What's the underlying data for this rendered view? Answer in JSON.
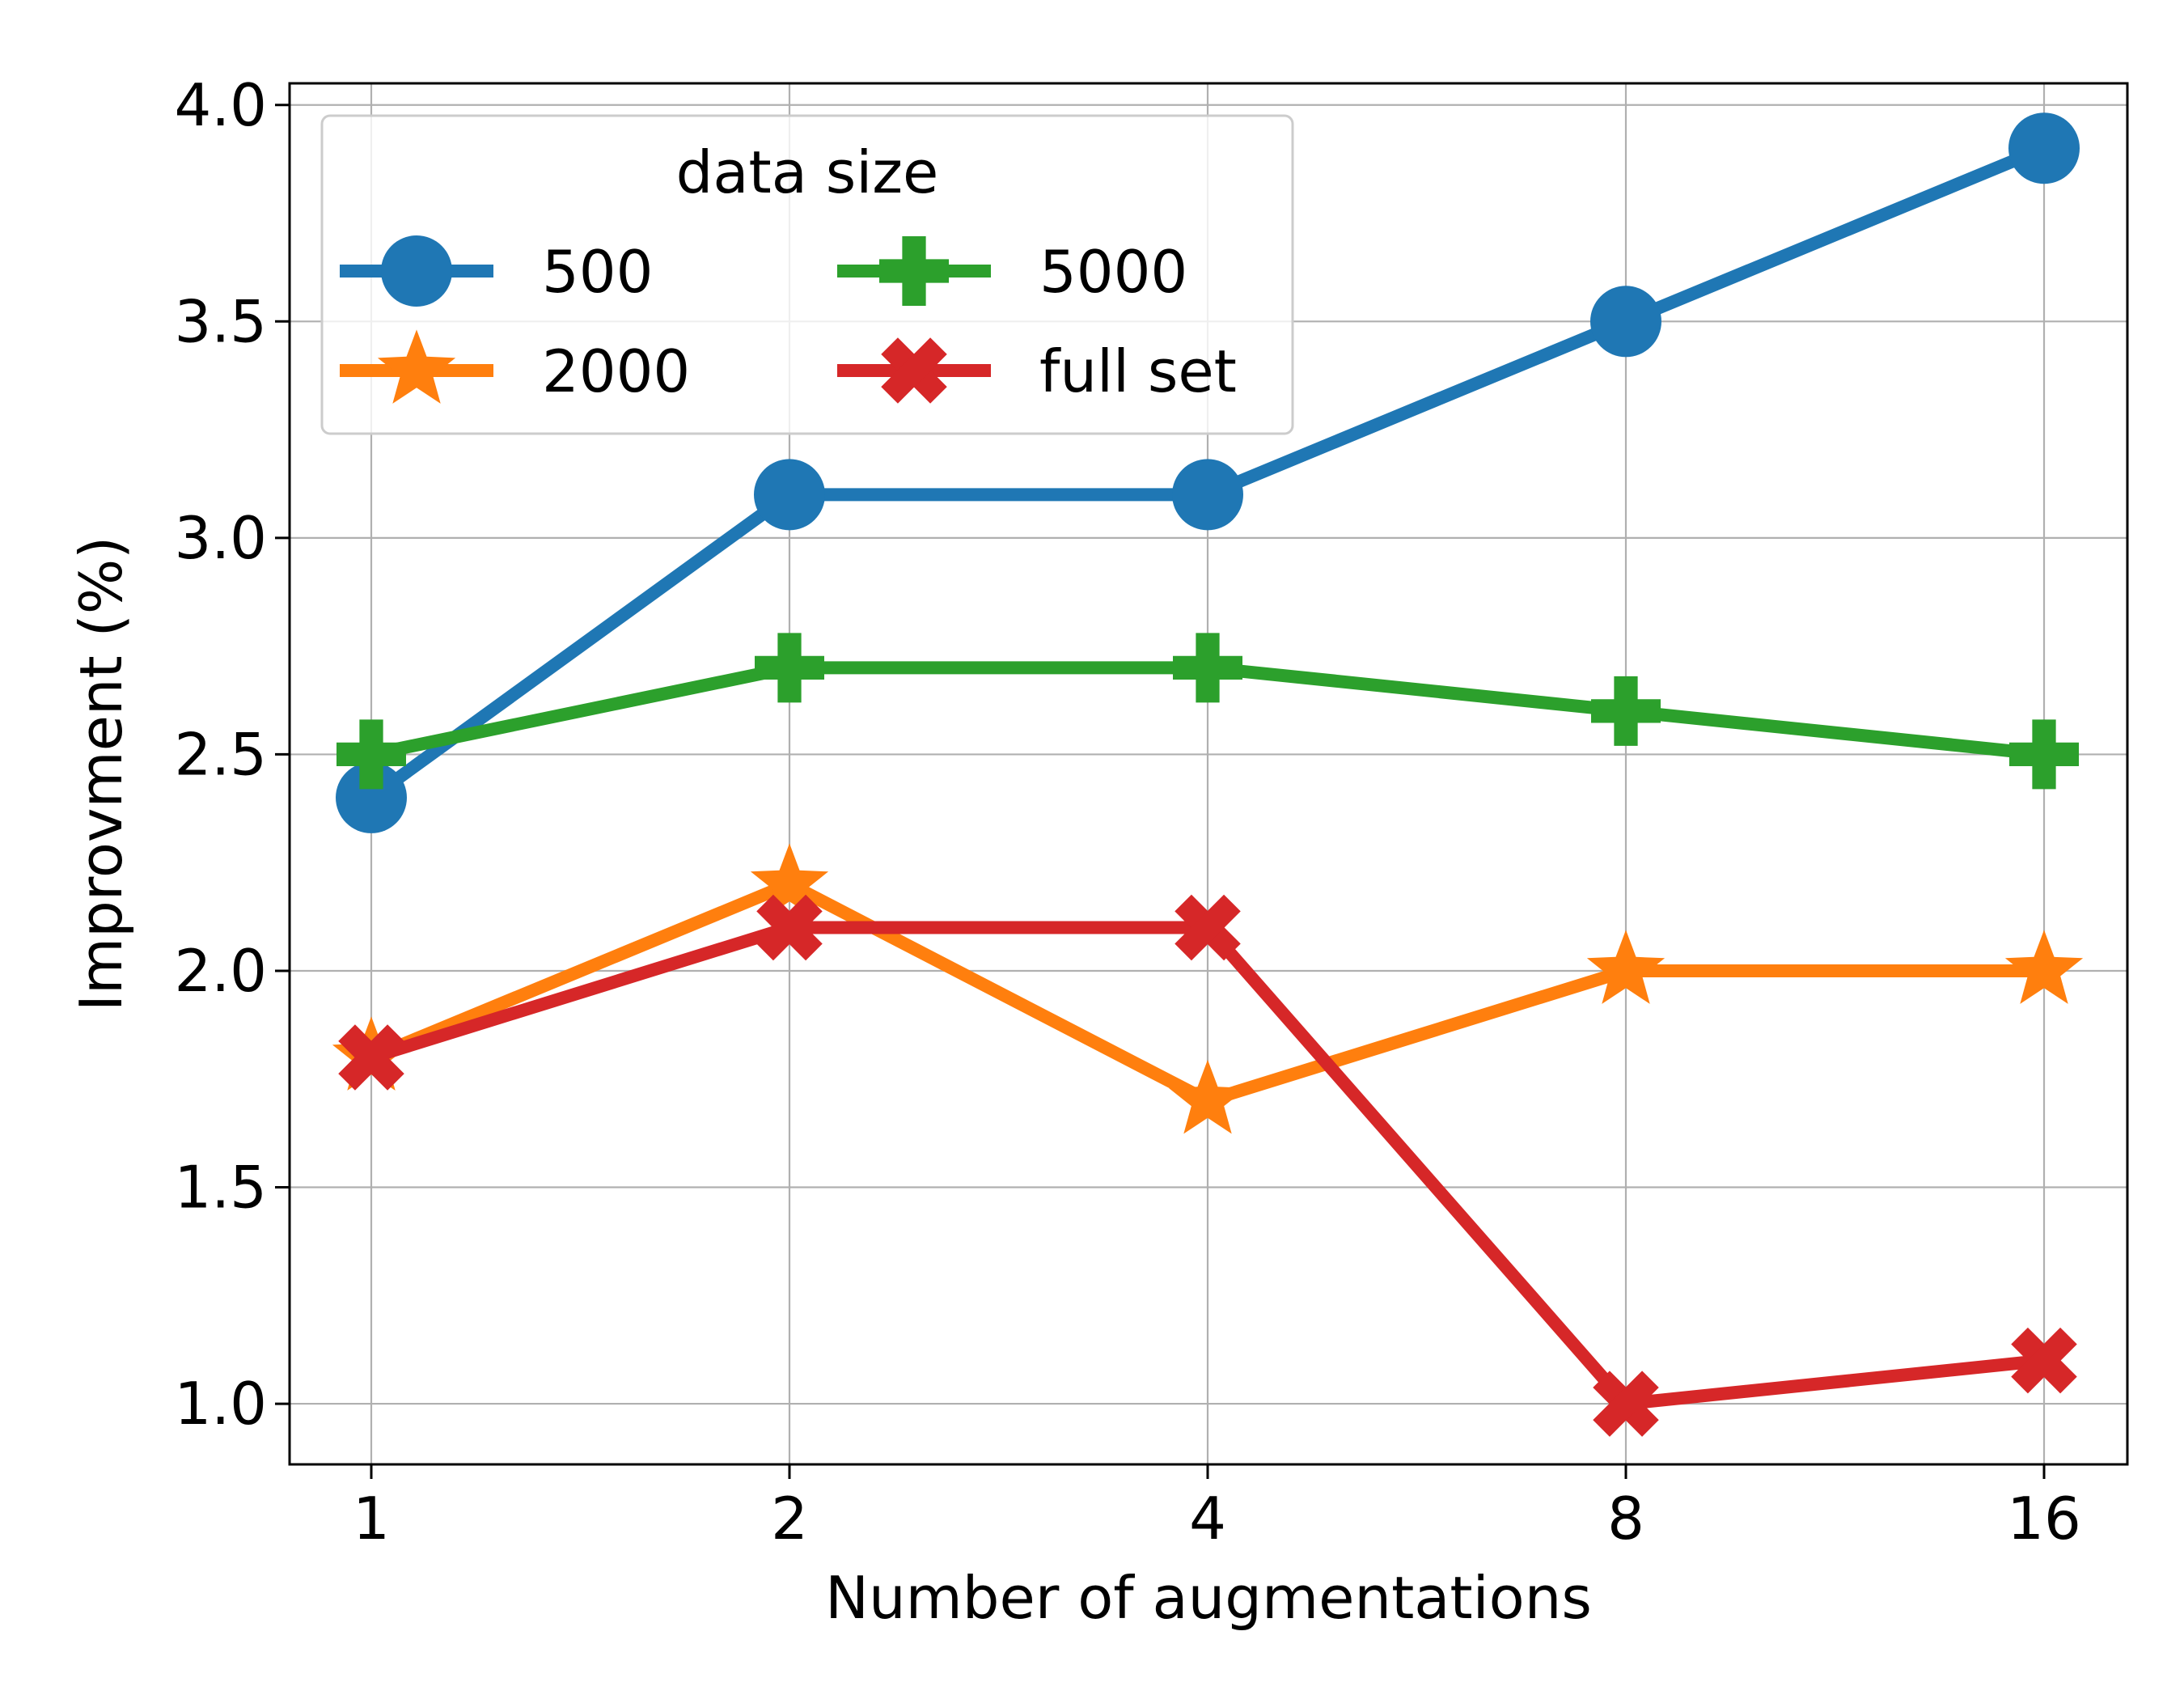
{
  "chart_data": {
    "type": "line",
    "xlabel": "Number of augmentations",
    "ylabel": "Improvment (%)",
    "x_categories": [
      "1",
      "2",
      "4",
      "8",
      "16"
    ],
    "ylim": [
      0.86,
      4.05
    ],
    "yticks": [
      "1.0",
      "1.5",
      "2.0",
      "2.5",
      "3.0",
      "3.5",
      "4.0"
    ],
    "grid": true,
    "legend": {
      "title": "data size",
      "placement": "top-left",
      "columns": 2
    },
    "series": [
      {
        "name": "500",
        "color": "#1f77b4",
        "marker": "circle",
        "values": [
          2.4,
          3.1,
          3.1,
          3.5,
          3.9
        ]
      },
      {
        "name": "2000",
        "color": "#ff7f0e",
        "marker": "star",
        "values": [
          1.8,
          2.2,
          1.7,
          2.0,
          2.0
        ]
      },
      {
        "name": "5000",
        "color": "#2ca02c",
        "marker": "plus",
        "values": [
          2.5,
          2.7,
          2.7,
          2.6,
          2.5
        ]
      },
      {
        "name": "full set",
        "color": "#d62728",
        "marker": "x",
        "values": [
          1.8,
          2.1,
          2.1,
          1.0,
          1.1
        ]
      }
    ]
  }
}
